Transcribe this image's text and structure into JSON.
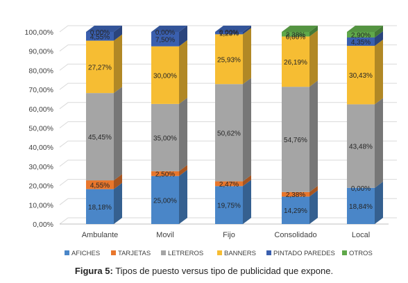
{
  "chart_data": {
    "type": "bar",
    "stacked": true,
    "percent_stacked": true,
    "categories": [
      "Ambulante",
      "Movil",
      "Fijo",
      "Consolidado",
      "Local"
    ],
    "series": [
      {
        "name": "AFICHES",
        "color": "#4a86c8",
        "values": [
          18.18,
          25.0,
          19.75,
          14.29,
          18.84
        ],
        "labels": [
          "18,18%",
          "25,00%",
          "19,75%",
          "14,29%",
          "18,84%"
        ]
      },
      {
        "name": "TARJETAS",
        "color": "#e8762c",
        "values": [
          4.55,
          2.5,
          2.47,
          2.38,
          0.0
        ],
        "labels": [
          "4,55%",
          "2,50%",
          "2,47%",
          "2,38%",
          "0,00%"
        ]
      },
      {
        "name": "LETREROS",
        "color": "#a5a5a5",
        "values": [
          45.45,
          35.0,
          50.62,
          54.76,
          43.48
        ],
        "labels": [
          "45,45%",
          "35,00%",
          "50,62%",
          "54,76%",
          "43,48%"
        ]
      },
      {
        "name": "BANNERS",
        "color": "#f6bd33",
        "values": [
          27.27,
          30.0,
          25.93,
          26.19,
          30.43
        ],
        "labels": [
          "27,27%",
          "30,00%",
          "25,93%",
          "26,19%",
          "30,43%"
        ]
      },
      {
        "name": "PINTADO PAREDES",
        "color": "#3a5fae",
        "values": [
          4.55,
          7.5,
          1.23,
          0.0,
          4.35
        ],
        "labels": [
          "4,55%",
          "7,50%",
          "1,23%",
          "0,00%",
          "4,35%"
        ]
      },
      {
        "name": "OTROS",
        "color": "#5fa84a",
        "values": [
          0.0,
          0.0,
          0.0,
          2.38,
          2.9
        ],
        "labels": [
          "0,00%",
          "0,00%",
          "0,00%",
          "2,38%",
          "2,90%"
        ]
      }
    ],
    "y_ticks": [
      "0,00%",
      "10,00%",
      "20,00%",
      "30,00%",
      "40,00%",
      "50,00%",
      "60,00%",
      "70,00%",
      "80,00%",
      "90,00%",
      "100,00%"
    ],
    "ylim": [
      0,
      100
    ],
    "grid": true,
    "legend_position": "bottom",
    "title": "",
    "xlabel": "",
    "ylabel": ""
  },
  "caption": {
    "label": "Figura 5:",
    "text": " Tipos de puesto versus tipo de publicidad que expone."
  }
}
